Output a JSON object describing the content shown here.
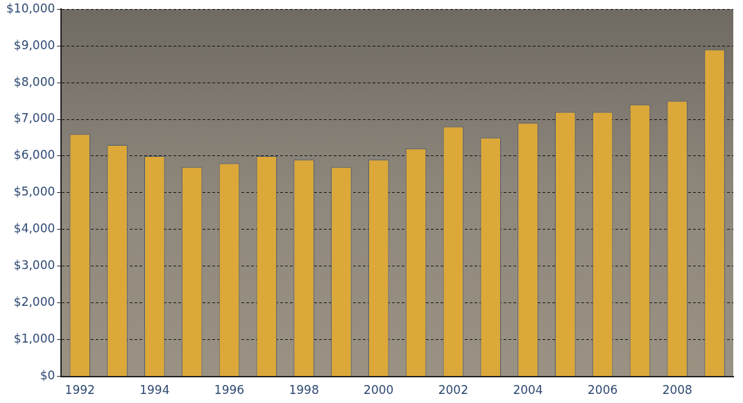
{
  "chart_data": {
    "type": "bar",
    "categories": [
      "1992",
      null,
      "1994",
      null,
      "1996",
      null,
      "1998",
      null,
      "2000",
      null,
      "2002",
      null,
      "2004",
      null,
      "2006",
      null,
      "2008",
      null
    ],
    "values": [
      6600,
      6300,
      6000,
      5700,
      5800,
      6000,
      5900,
      5700,
      5900,
      6200,
      6800,
      6500,
      6900,
      7200,
      7200,
      7400,
      7500,
      8900
    ],
    "color": "#dca83a",
    "ylim": [
      0,
      10000
    ],
    "yticks": [
      {
        "value": 0,
        "label": "$0"
      },
      {
        "value": 1000,
        "label": "$1,000"
      },
      {
        "value": 2000,
        "label": "$2,000"
      },
      {
        "value": 3000,
        "label": "$3,000"
      },
      {
        "value": 4000,
        "label": "$4,000"
      },
      {
        "value": 5000,
        "label": "$5,000"
      },
      {
        "value": 6000,
        "label": "$6,000"
      },
      {
        "value": 7000,
        "label": "$7,000"
      },
      {
        "value": 8000,
        "label": "$8,000"
      },
      {
        "value": 9000,
        "label": "$9,000"
      },
      {
        "value": 10000,
        "label": "$10,000"
      }
    ],
    "grid": true
  }
}
